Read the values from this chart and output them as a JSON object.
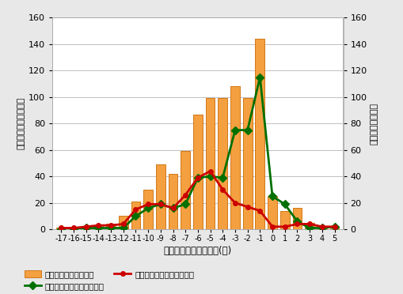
{
  "xlabel": "メッシュ人口の変化率(％)",
  "ylabel_left": "人口増減のメッシュ数",
  "ylabel_right": "営巣の有無の変化",
  "x_values": [
    -17,
    -16,
    -15,
    -14,
    -13,
    -12,
    -11,
    -10,
    -9,
    -8,
    -7,
    -6,
    -5,
    -4,
    -3,
    -2,
    -1,
    0,
    1,
    2,
    3,
    4,
    5
  ],
  "bar_values": [
    1,
    1,
    2,
    3,
    4,
    10,
    21,
    30,
    49,
    42,
    59,
    87,
    99,
    99,
    108,
    99,
    144,
    25,
    14,
    16,
    5,
    1,
    2
  ],
  "green_values": [
    0,
    0,
    1,
    1,
    1,
    1,
    10,
    16,
    19,
    16,
    19,
    39,
    40,
    39,
    75,
    75,
    115,
    25,
    19,
    6,
    1,
    1,
    2
  ],
  "red_values": [
    1,
    1,
    2,
    3,
    3,
    4,
    15,
    19,
    19,
    16,
    26,
    39,
    44,
    30,
    20,
    17,
    14,
    2,
    2,
    4,
    4,
    2,
    2
  ],
  "bar_color": "#f4a040",
  "bar_edge_color": "#d07818",
  "green_color": "#007000",
  "red_color": "#cc0000",
  "bg_color": "#e8e8e8",
  "plot_bg_color": "#ffffff",
  "ylim": [
    0,
    160
  ],
  "yticks": [
    0,
    20,
    40,
    60,
    80,
    100,
    120,
    140,
    160
  ],
  "legend_bar": "人口増減率メッシュ数",
  "legend_green": "営巣が変わらないメッシュ",
  "legend_red": "営巣しなくなったメッシュ"
}
